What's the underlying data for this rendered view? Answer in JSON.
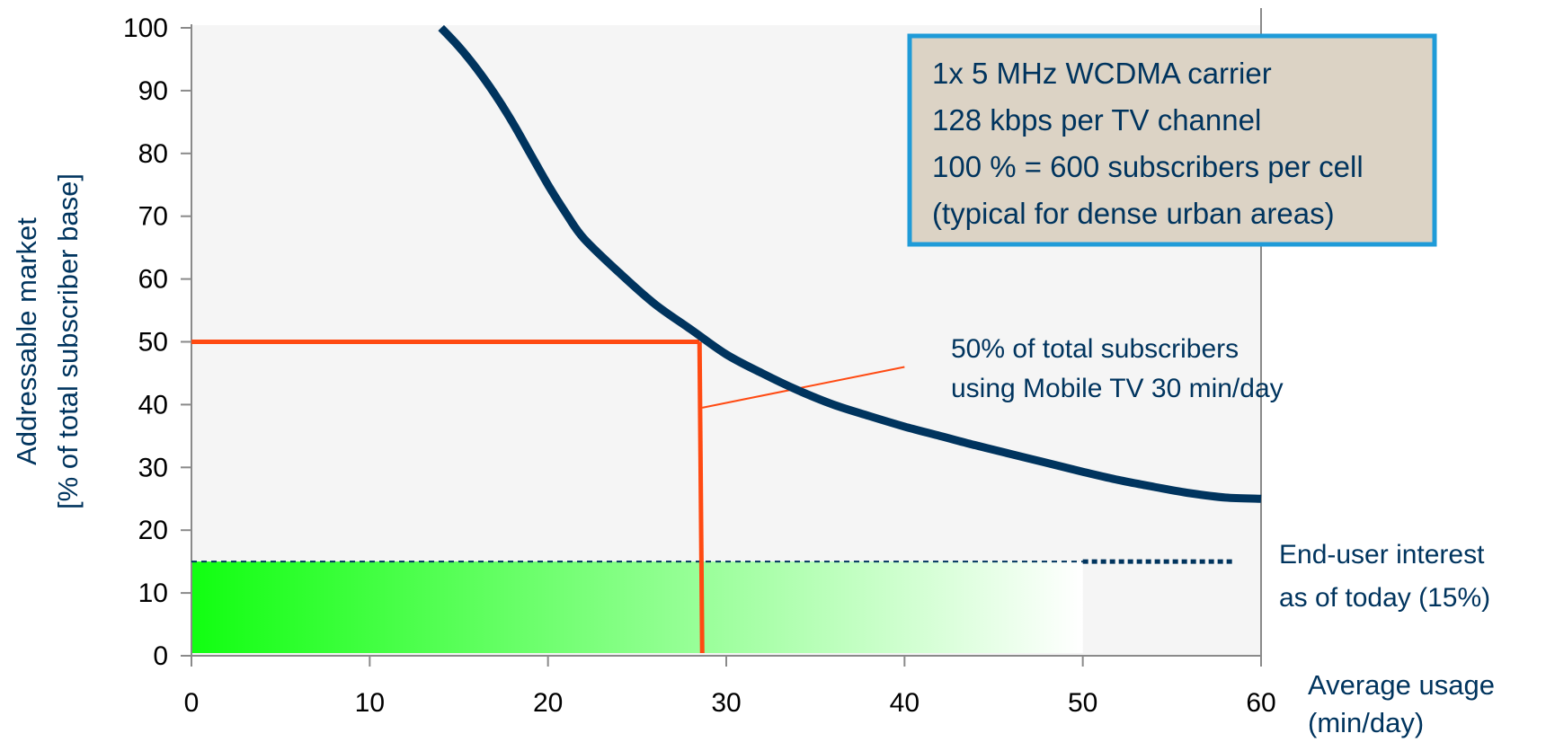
{
  "chart_data": {
    "type": "line",
    "ylabel": [
      "Addressable market",
      "[% of total subscriber base]"
    ],
    "xlabel": [
      "Average usage",
      "(min/day)"
    ],
    "xlim": [
      0,
      60
    ],
    "ylim": [
      0,
      100
    ],
    "x_ticks": [
      0,
      10,
      20,
      30,
      40,
      50,
      60
    ],
    "y_ticks": [
      0,
      10,
      20,
      30,
      40,
      50,
      60,
      70,
      80,
      90,
      100
    ],
    "grid": false,
    "series": [
      {
        "color": "#00345e",
        "points": [
          [
            14,
            100
          ],
          [
            15,
            97
          ],
          [
            16,
            93.5
          ],
          [
            17,
            89.5
          ],
          [
            18,
            85
          ],
          [
            19,
            80
          ],
          [
            20,
            75
          ],
          [
            21,
            70.5
          ],
          [
            22,
            66.5
          ],
          [
            24,
            61
          ],
          [
            26,
            56
          ],
          [
            28,
            52
          ],
          [
            30,
            48
          ],
          [
            32,
            45
          ],
          [
            34,
            42.3
          ],
          [
            36,
            40
          ],
          [
            38,
            38.2
          ],
          [
            40,
            36.5
          ],
          [
            42,
            35
          ],
          [
            44,
            33.5
          ],
          [
            46,
            32.1
          ],
          [
            48,
            30.7
          ],
          [
            50,
            29.3
          ],
          [
            52,
            28
          ],
          [
            54,
            26.9
          ],
          [
            56,
            25.9
          ],
          [
            58,
            25.2
          ],
          [
            60,
            25
          ]
        ]
      }
    ],
    "marker_lines": {
      "color": "#ff4a12",
      "y_value": 50,
      "x_value": 28.5
    },
    "interest_level": {
      "value": 15,
      "gradient_start": "#11ff11",
      "gradient_end": "#ffffff",
      "gradient_to_x": 50,
      "line_color": "#00345e"
    },
    "info_box": {
      "lines": [
        "1x 5 MHz WCDMA carrier",
        "128 kbps per TV channel",
        "100 % = 600 subscribers per cell",
        "(typical for dense urban areas)"
      ],
      "background": "#dcd3c5",
      "border": "#1f9bd8"
    },
    "annotations": {
      "crossing_note": [
        "50% of total subscribers",
        "using Mobile TV 30 min/day"
      ],
      "interest_note": [
        "End-user interest",
        "as of today (15%)"
      ]
    },
    "plot_background": "#f5f5f5"
  }
}
